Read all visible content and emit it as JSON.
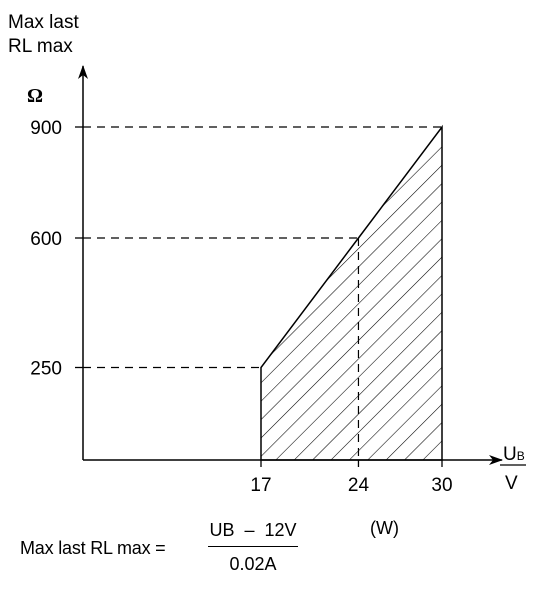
{
  "chart_data": {
    "type": "area",
    "title": "",
    "ylabel_lines": [
      "Max last",
      "RL max"
    ],
    "yunit": "Ω",
    "xlabel": "UB",
    "xlabel_main": "U",
    "xlabel_sub": "B",
    "xunit": "V",
    "x_ticks": [
      17,
      24,
      30
    ],
    "y_ticks": [
      250,
      600,
      900
    ],
    "boundary": [
      {
        "x": 17,
        "y": 250
      },
      {
        "x": 24,
        "y": 600
      },
      {
        "x": 30,
        "y": 900
      }
    ],
    "fill": "hatched",
    "reference_lines": "dashed",
    "grid": false
  },
  "formula": {
    "lhs": "Max last RL max =",
    "numerator": "UB  –  12V",
    "denominator": "0.02A",
    "tag": "(W)"
  }
}
